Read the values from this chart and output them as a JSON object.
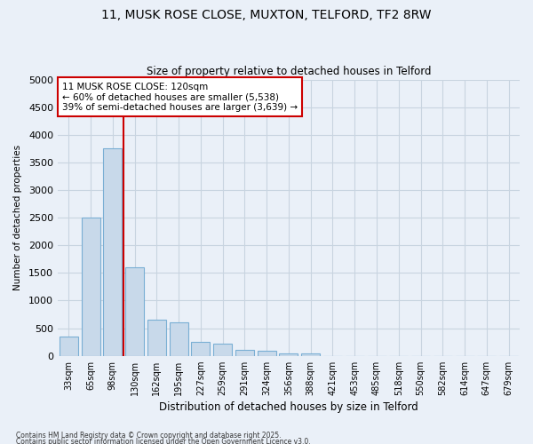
{
  "title_line1": "11, MUSK ROSE CLOSE, MUXTON, TELFORD, TF2 8RW",
  "title_line2": "Size of property relative to detached houses in Telford",
  "xlabel": "Distribution of detached houses by size in Telford",
  "ylabel": "Number of detached properties",
  "categories": [
    "33sqm",
    "65sqm",
    "98sqm",
    "130sqm",
    "162sqm",
    "195sqm",
    "227sqm",
    "259sqm",
    "291sqm",
    "324sqm",
    "356sqm",
    "388sqm",
    "421sqm",
    "453sqm",
    "485sqm",
    "518sqm",
    "550sqm",
    "582sqm",
    "614sqm",
    "647sqm",
    "679sqm"
  ],
  "values": [
    350,
    2500,
    3750,
    1600,
    650,
    600,
    250,
    220,
    105,
    95,
    50,
    45,
    0,
    0,
    0,
    0,
    0,
    0,
    0,
    0,
    0
  ],
  "bar_color": "#c8d9ea",
  "bar_edge_color": "#7aafd4",
  "grid_color": "#c8d4e0",
  "background_color": "#eaf0f8",
  "vline_color": "#cc0000",
  "vline_x_index": 2.5,
  "annotation_lines": [
    "11 MUSK ROSE CLOSE: 120sqm",
    "← 60% of detached houses are smaller (5,538)",
    "39% of semi-detached houses are larger (3,639) →"
  ],
  "annotation_fontsize": 7.5,
  "ylim": [
    0,
    5000
  ],
  "yticks": [
    0,
    500,
    1000,
    1500,
    2000,
    2500,
    3000,
    3500,
    4000,
    4500,
    5000
  ],
  "footnote1": "Contains HM Land Registry data © Crown copyright and database right 2025.",
  "footnote2": "Contains public sector information licensed under the Open Government Licence v3.0."
}
